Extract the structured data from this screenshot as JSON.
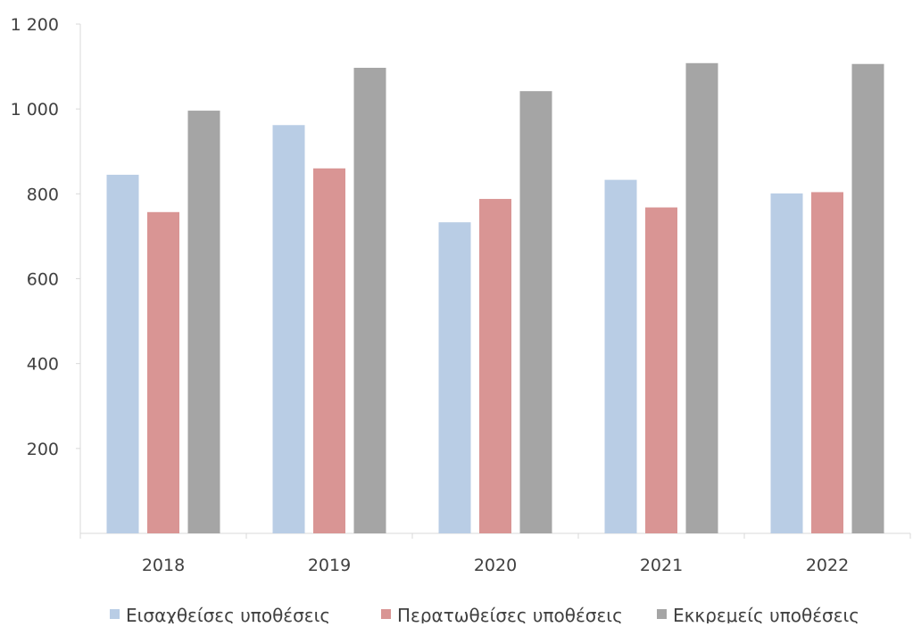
{
  "chart_data": {
    "type": "bar",
    "categories": [
      "2018",
      "2019",
      "2020",
      "2021",
      "2022"
    ],
    "series": [
      {
        "name": "Εισαχθείσες υποθέσεις",
        "color": "#b9cde5",
        "values": [
          845,
          962,
          733,
          833,
          801
        ]
      },
      {
        "name": "Περατωθείσες υποθέσεις",
        "color": "#d99594",
        "values": [
          757,
          860,
          788,
          768,
          804
        ]
      },
      {
        "name": "Εκκρεμείς υποθέσεις",
        "color": "#a5a5a5",
        "values": [
          996,
          1097,
          1042,
          1108,
          1106
        ]
      }
    ],
    "ylim": [
      0,
      1200
    ],
    "yticks": [
      {
        "value": 200,
        "label": "200"
      },
      {
        "value": 400,
        "label": "400"
      },
      {
        "value": 600,
        "label": "600"
      },
      {
        "value": 800,
        "label": "800"
      },
      {
        "value": 1000,
        "label": "1 000"
      },
      {
        "value": 1200,
        "label": "1 200"
      }
    ],
    "grid": false,
    "legend_position": "bottom"
  }
}
